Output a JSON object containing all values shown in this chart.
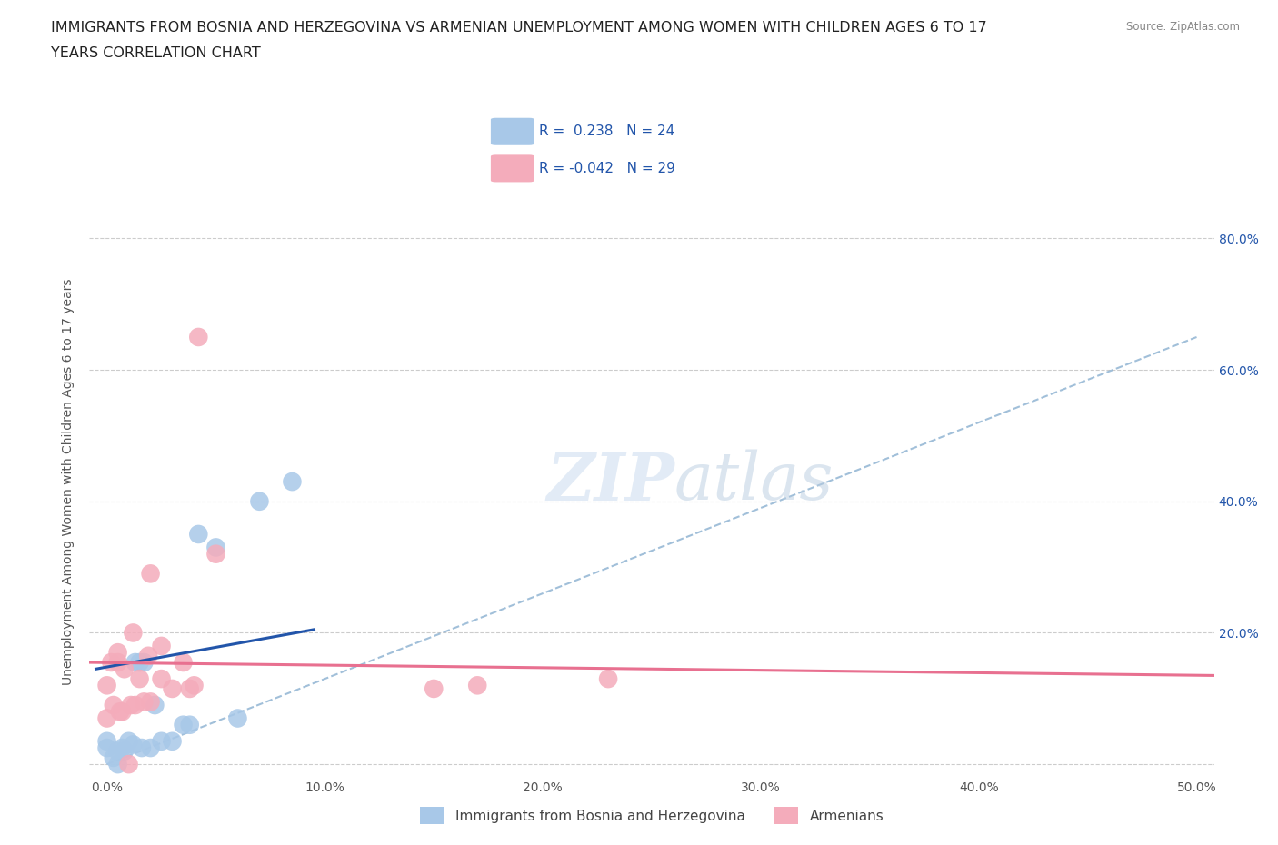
{
  "title_line1": "IMMIGRANTS FROM BOSNIA AND HERZEGOVINA VS ARMENIAN UNEMPLOYMENT AMONG WOMEN WITH CHILDREN AGES 6 TO 17",
  "title_line2": "YEARS CORRELATION CHART",
  "source": "Source: ZipAtlas.com",
  "ylabel": "Unemployment Among Women with Children Ages 6 to 17 years",
  "xlim": [
    -0.008,
    0.508
  ],
  "ylim": [
    -0.02,
    0.88
  ],
  "xticks": [
    0.0,
    0.1,
    0.2,
    0.3,
    0.4,
    0.5
  ],
  "xtick_labels": [
    "0.0%",
    "10.0%",
    "20.0%",
    "30.0%",
    "40.0%",
    "50.0%"
  ],
  "yticks": [
    0.0,
    0.2,
    0.4,
    0.6,
    0.8
  ],
  "ytick_labels_right": [
    "",
    "20.0%",
    "40.0%",
    "60.0%",
    "80.0%"
  ],
  "blue_color": "#A8C8E8",
  "pink_color": "#F4ACBB",
  "blue_line_color": "#2255AA",
  "pink_line_color": "#E87090",
  "dashed_line_color": "#8AB0D0",
  "blue_scatter_x": [
    0.0,
    0.0,
    0.003,
    0.005,
    0.005,
    0.007,
    0.008,
    0.01,
    0.012,
    0.013,
    0.015,
    0.016,
    0.017,
    0.02,
    0.022,
    0.025,
    0.03,
    0.035,
    0.038,
    0.042,
    0.05,
    0.06,
    0.07,
    0.085
  ],
  "blue_scatter_y": [
    0.025,
    0.035,
    0.01,
    0.0,
    0.02,
    0.025,
    0.02,
    0.035,
    0.03,
    0.155,
    0.155,
    0.025,
    0.155,
    0.025,
    0.09,
    0.035,
    0.035,
    0.06,
    0.06,
    0.35,
    0.33,
    0.07,
    0.4,
    0.43
  ],
  "pink_scatter_x": [
    0.0,
    0.0,
    0.002,
    0.003,
    0.005,
    0.005,
    0.006,
    0.007,
    0.008,
    0.01,
    0.011,
    0.012,
    0.013,
    0.015,
    0.017,
    0.019,
    0.02,
    0.02,
    0.025,
    0.025,
    0.03,
    0.035,
    0.038,
    0.04,
    0.042,
    0.05,
    0.15,
    0.17,
    0.23
  ],
  "pink_scatter_y": [
    0.07,
    0.12,
    0.155,
    0.09,
    0.155,
    0.17,
    0.08,
    0.08,
    0.145,
    0.0,
    0.09,
    0.2,
    0.09,
    0.13,
    0.095,
    0.165,
    0.095,
    0.29,
    0.13,
    0.18,
    0.115,
    0.155,
    0.115,
    0.12,
    0.65,
    0.32,
    0.115,
    0.12,
    0.13
  ],
  "dashed_line_x": [
    0.0,
    0.5
  ],
  "dashed_line_y": [
    0.0,
    0.65
  ],
  "blue_line_x": [
    -0.005,
    0.095
  ],
  "blue_line_y_start": 0.145,
  "blue_line_y_end": 0.205,
  "pink_line_x": [
    -0.01,
    0.51
  ],
  "pink_line_y_start": 0.155,
  "pink_line_y_end": 0.135,
  "title_fontsize": 11.5,
  "axis_label_fontsize": 10,
  "tick_fontsize": 10,
  "legend_fontsize": 11
}
